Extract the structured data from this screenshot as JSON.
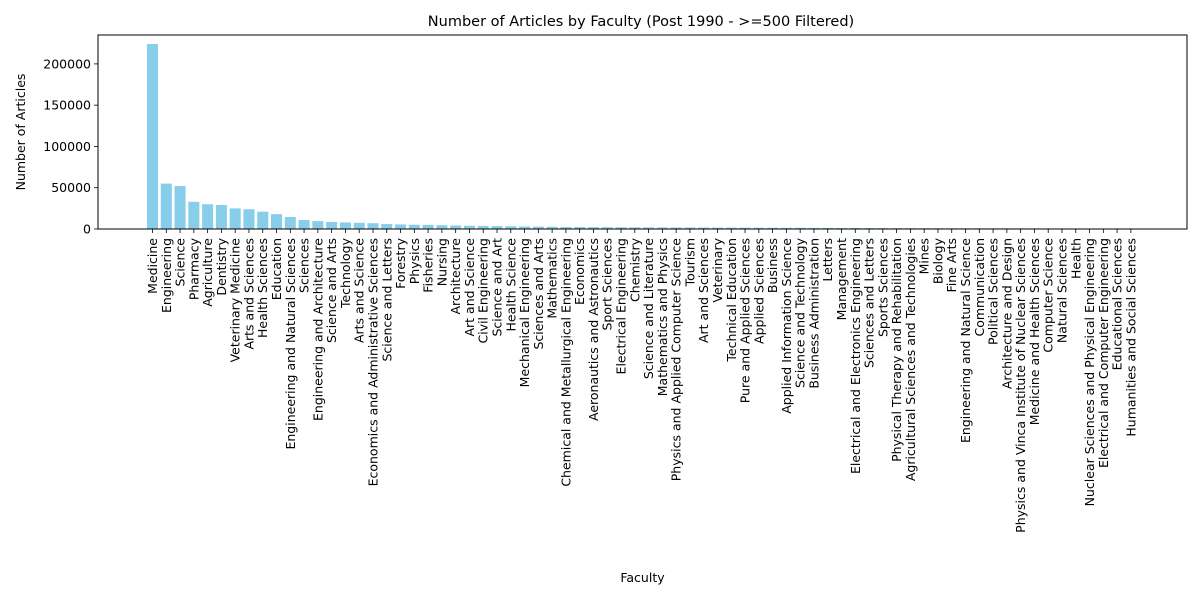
{
  "chart_data": {
    "type": "bar",
    "title": "Number of Articles by Faculty (Post 1990 - >=500 Filtered)",
    "xlabel": "Faculty",
    "ylabel": "Number of Articles",
    "ylim": [
      0,
      235000
    ],
    "yticks": [
      0,
      50000,
      100000,
      150000,
      200000
    ],
    "grid": false,
    "bar_color": "#87CEEB",
    "categories": [
      "Medicine",
      "Engineering",
      "Science",
      "Pharmacy",
      "Agriculture",
      "Dentistry",
      "Veterinary Medicine",
      "Arts and Sciences",
      "Health Sciences",
      "Education",
      "Engineering and Natural Sciences",
      "Sciences",
      "Engineering and Architecture",
      "Science and Arts",
      "Technology",
      "Arts and Science",
      "Economics and Administrative Sciences",
      "Science and Letters",
      "Forestry",
      "Physics",
      "Fisheries",
      "Nursing",
      "Architecture",
      "Art and Science",
      "Civil Engineering",
      "Science and Art",
      "Health Science",
      "Mechanical Engineering",
      "Sciences and Arts",
      "Mathematics",
      "Chemical and Metallurgical Engineering",
      "Economics",
      "Aeronautics and Astronautics",
      "Sport Sciences",
      "Electrical Engineering",
      "Chemistry",
      "Science and Literature",
      "Mathematics and Physics",
      "Physics and Applied Computer Science",
      "Tourism",
      "Art and Sciences",
      "Veterinary",
      "Technical Education",
      "Pure and Applied Sciences",
      "Applied Sciences",
      "Business",
      "Applied Information Science",
      "Science and Technology",
      "Business Administration",
      "Letters",
      "Management",
      "Electrical and Electronics Engineering",
      "Sciences and Letters",
      "Sports Sciences",
      "Physical Therapy and Rehabilitation",
      "Agricultural Sciences and Technologies",
      "Mines",
      "Biology",
      "Fine Arts",
      "Engineering and Natural Science",
      "Communication",
      "Political Sciences",
      "Architecture and Design",
      "Physics and Vinca Institute of Nuclear Sciences",
      "Medicine and Health Sciences",
      "Computer Science",
      "Natural Sciences",
      "Health",
      "Nuclear Sciences and Physical Engineering",
      "Electrical and Computer Engineering",
      "Educational Sciences",
      "Humanities and Social Sciences"
    ],
    "values": [
      224000,
      55000,
      52000,
      33000,
      30000,
      29000,
      25000,
      24000,
      21000,
      18000,
      14500,
      11000,
      9500,
      8500,
      8000,
      7500,
      7000,
      6000,
      5500,
      5200,
      5000,
      4600,
      4200,
      3900,
      3700,
      3500,
      3300,
      3100,
      2900,
      2700,
      2500,
      2400,
      2300,
      2200,
      2100,
      2000,
      1950,
      1900,
      1850,
      1800,
      1750,
      1700,
      1650,
      1600,
      1550,
      1500,
      1450,
      1400,
      1350,
      1300,
      1250,
      1200,
      1150,
      1100,
      1050,
      1000,
      950,
      920,
      890,
      860,
      830,
      800,
      770,
      740,
      710,
      680,
      650,
      620,
      590,
      560,
      530,
      500
    ]
  }
}
